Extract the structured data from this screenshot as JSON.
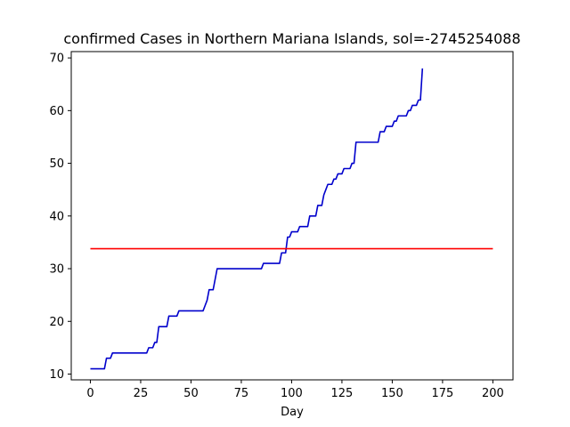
{
  "chart_data": {
    "type": "line",
    "title": "confirmed Cases in Northern Mariana Islands, sol=-2745254088",
    "xlabel": "Day",
    "ylabel": "",
    "xlim": [
      -9.5,
      210
    ],
    "ylim": [
      8.9,
      71.2
    ],
    "xticks": [
      0,
      25,
      50,
      75,
      100,
      125,
      150,
      175,
      200
    ],
    "yticks": [
      10,
      20,
      30,
      40,
      50,
      60,
      70
    ],
    "grid": false,
    "series": [
      {
        "color": "#0000cc",
        "points": [
          [
            0,
            11
          ],
          [
            7,
            11
          ],
          [
            8,
            13
          ],
          [
            10,
            13
          ],
          [
            11,
            14
          ],
          [
            28,
            14
          ],
          [
            29,
            15
          ],
          [
            31,
            15
          ],
          [
            32,
            16
          ],
          [
            33,
            16
          ],
          [
            34,
            19
          ],
          [
            38,
            19
          ],
          [
            39,
            21
          ],
          [
            43,
            21
          ],
          [
            44,
            22
          ],
          [
            56,
            22
          ],
          [
            57,
            23
          ],
          [
            58,
            24
          ],
          [
            59,
            26
          ],
          [
            61,
            26
          ],
          [
            62,
            28
          ],
          [
            63,
            30
          ],
          [
            85,
            30
          ],
          [
            86,
            31
          ],
          [
            94,
            31
          ],
          [
            95,
            33
          ],
          [
            97,
            33
          ],
          [
            98,
            36
          ],
          [
            99,
            36
          ],
          [
            100,
            37
          ],
          [
            103,
            37
          ],
          [
            104,
            38
          ],
          [
            108,
            38
          ],
          [
            109,
            40
          ],
          [
            112,
            40
          ],
          [
            113,
            42
          ],
          [
            115,
            42
          ],
          [
            116,
            44
          ],
          [
            117,
            45
          ],
          [
            118,
            46
          ],
          [
            120,
            46
          ],
          [
            121,
            47
          ],
          [
            122,
            47
          ],
          [
            123,
            48
          ],
          [
            125,
            48
          ],
          [
            126,
            49
          ],
          [
            129,
            49
          ],
          [
            130,
            50
          ],
          [
            131,
            50
          ],
          [
            132,
            54
          ],
          [
            143,
            54
          ],
          [
            144,
            56
          ],
          [
            146,
            56
          ],
          [
            147,
            57
          ],
          [
            150,
            57
          ],
          [
            151,
            58
          ],
          [
            152,
            58
          ],
          [
            153,
            59
          ],
          [
            157,
            59
          ],
          [
            158,
            60
          ],
          [
            159,
            60
          ],
          [
            160,
            61
          ],
          [
            162,
            61
          ],
          [
            163,
            62
          ],
          [
            164,
            62
          ],
          [
            165,
            68
          ]
        ]
      },
      {
        "color": "#ff0000",
        "points": [
          [
            0,
            33.8
          ],
          [
            200,
            33.8
          ]
        ]
      }
    ]
  }
}
